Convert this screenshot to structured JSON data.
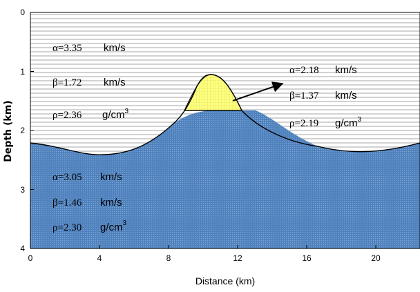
{
  "figure": {
    "xlabel": "Distance (km)",
    "ylabel": "Depth (km)",
    "x_ticks": [
      "0",
      "4",
      "8",
      "12",
      "16",
      "20"
    ],
    "y_ticks": [
      "0",
      "1",
      "2",
      "3",
      "4"
    ]
  },
  "layers": {
    "upper": {
      "alpha": "α=3.35",
      "alpha_unit": "km/s",
      "beta": "β=1.72",
      "beta_unit": "km/s",
      "rho": "ρ=2.36",
      "rho_unit": "g/cm",
      "rho_exp": "3"
    },
    "lower": {
      "alpha": "α=3.05",
      "alpha_unit": "km/s",
      "beta": "β=1.46",
      "beta_unit": "km/s",
      "rho": "ρ=2.30",
      "rho_unit": "g/cm",
      "rho_exp": "3"
    },
    "hill": {
      "alpha": "α=2.18",
      "alpha_unit": "km/s",
      "beta": "β=1.37",
      "beta_unit": "km/s",
      "rho": "ρ=2.19",
      "rho_unit": "g/cm",
      "rho_exp": "3"
    }
  },
  "colors": {
    "lower_fill": "#4f81bd",
    "hill_fill": "#ffff80",
    "hatch": "#9a9a9a"
  }
}
